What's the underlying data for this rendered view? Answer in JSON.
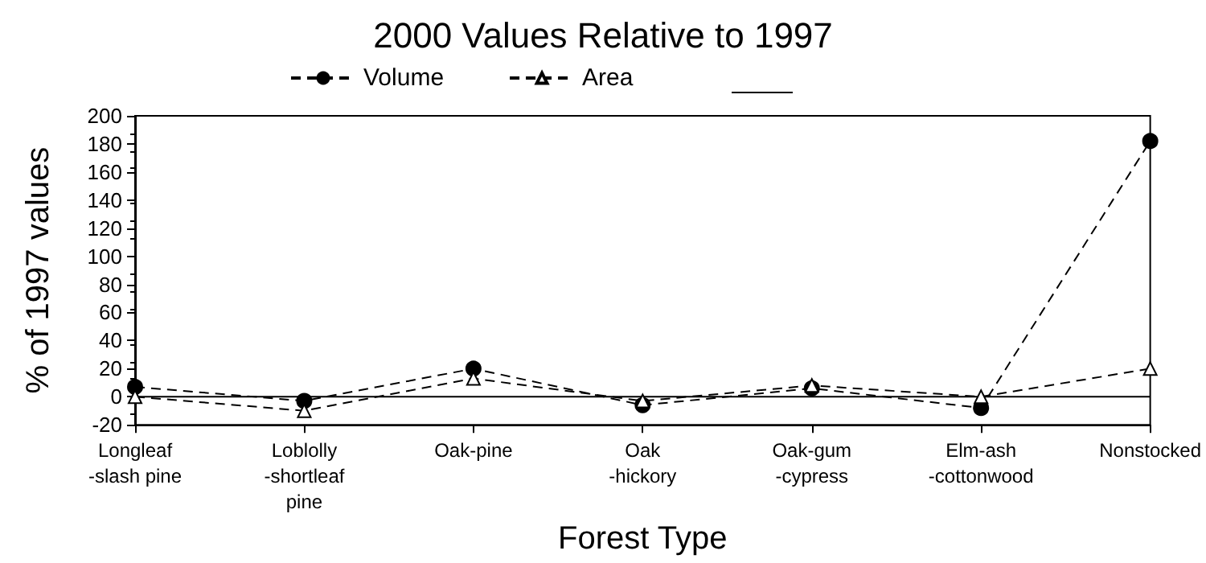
{
  "chart_data": {
    "type": "line",
    "title": "2000 Values Relative to 1997",
    "xlabel": "Forest Type",
    "ylabel": "% of 1997 values",
    "categories": [
      "Longleaf\n-slash pine",
      "Loblolly\n-shortleaf\npine",
      "Oak-pine",
      "Oak\n-hickory",
      "Oak-gum\n-cypress",
      "Elm-ash\n-cottonwood",
      "Nonstocked"
    ],
    "series": [
      {
        "name": "Volume",
        "color": "#000000",
        "marker": "circle",
        "line_style": "dashed",
        "values": [
          7,
          -3,
          20,
          -6,
          6,
          -8,
          182
        ]
      },
      {
        "name": "Area",
        "color": "#000000",
        "marker": "triangle",
        "line_style": "dashed",
        "values": [
          0,
          -10,
          13,
          -3,
          8,
          0,
          20
        ]
      }
    ],
    "ylim": [
      -20,
      200
    ],
    "yticks": [
      -20,
      0,
      20,
      40,
      60,
      80,
      100,
      120,
      140,
      160,
      180,
      200
    ],
    "ref_lines": [
      {
        "axis": "y",
        "value": 0,
        "color": "#000000",
        "line_style": "solid"
      }
    ],
    "grid": false,
    "legend": "top"
  }
}
